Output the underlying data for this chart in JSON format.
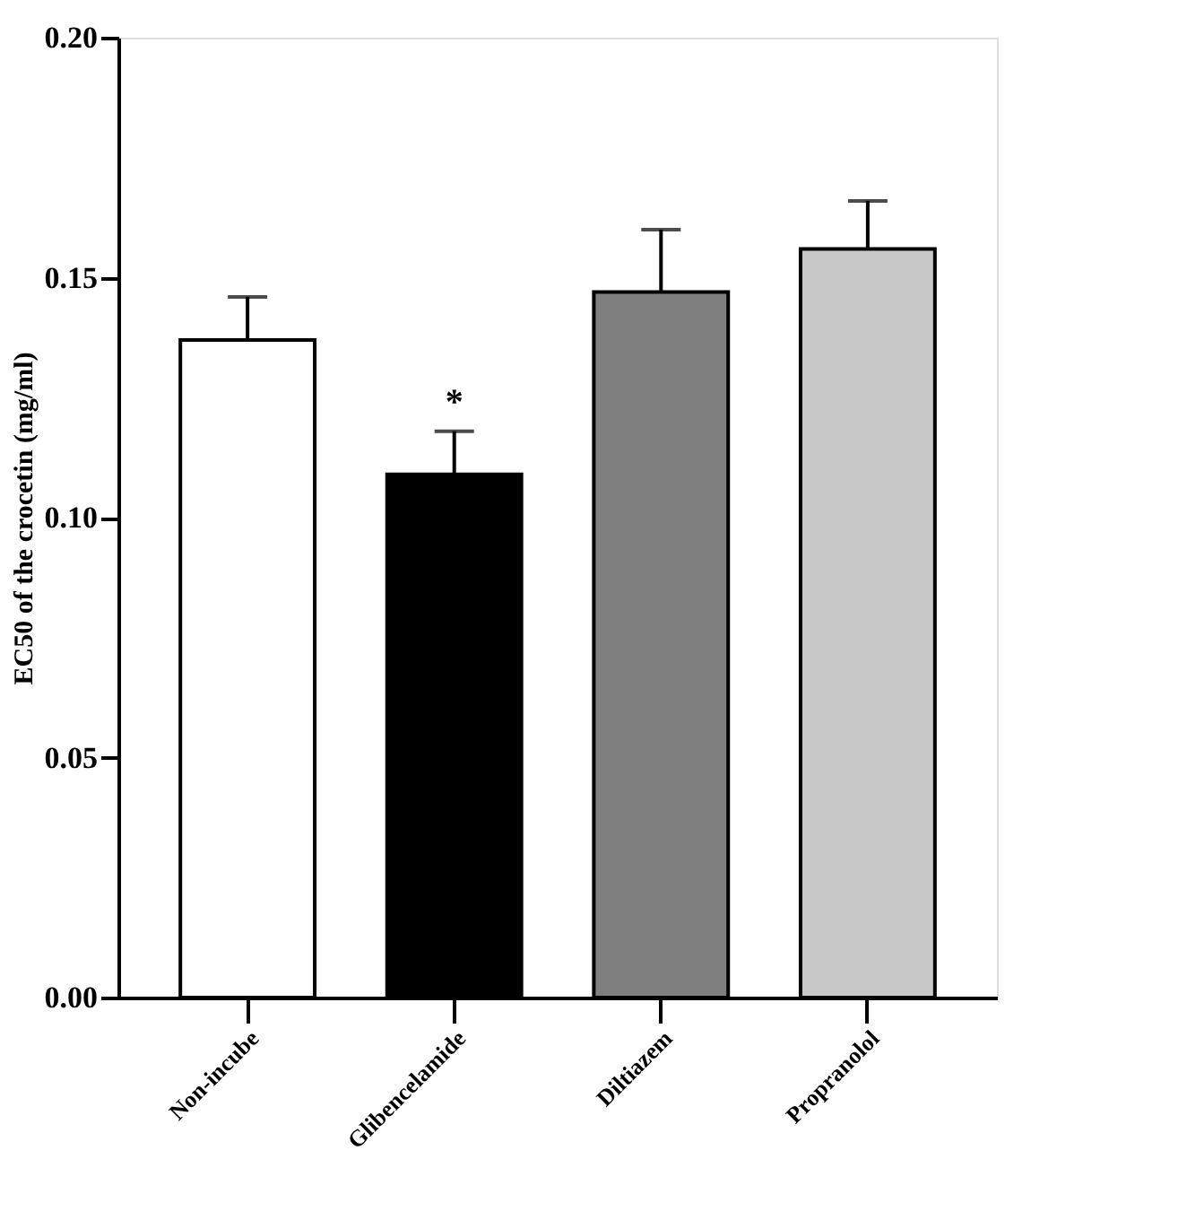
{
  "chart_data": {
    "type": "bar",
    "ylabel": "EC50 of the crocetin (mg/ml)",
    "categories": [
      "Non-incube",
      "Glibencelamide",
      "Diltiazem",
      "Propranolol"
    ],
    "values": [
      0.137,
      0.109,
      0.147,
      0.156
    ],
    "colors": [
      "#ffffff",
      "#000000",
      "#7f7f7f",
      "#c8c8c8"
    ],
    "errors": [
      [
        0.137,
        0.146
      ],
      [
        0.109,
        0.118
      ],
      [
        0.147,
        0.16
      ],
      [
        0.156,
        0.166
      ]
    ],
    "annotations": [
      "*"
    ],
    "ylim": [
      0,
      0.2
    ],
    "yticks": [
      {
        "value": 0,
        "label": "0.00"
      },
      {
        "value": 0.05,
        "label": "0.05"
      },
      {
        "value": 0.1,
        "label": "0.10"
      },
      {
        "value": 0.15,
        "label": "0.15"
      },
      {
        "value": 0.2,
        "label": "0.20"
      }
    ],
    "grid": false
  }
}
